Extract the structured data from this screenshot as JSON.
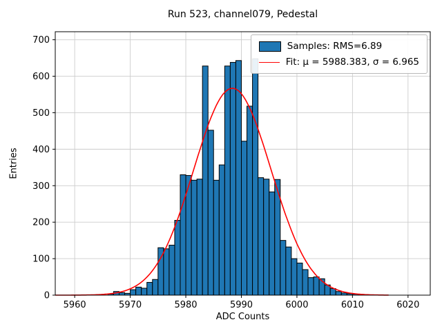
{
  "figure": {
    "title": "Run 523, channel079, Pedestal",
    "xlabel": "ADC Counts",
    "ylabel": "Entries"
  },
  "legend": {
    "samples_label": "Samples: RMS=6.89",
    "fit_label": "Fit: μ = 5988.383, σ = 6.965"
  },
  "chart_data": {
    "type": "bar",
    "subtype": "histogram-with-gaussian-fit",
    "title": "Run 523, channel079, Pedestal",
    "xlabel": "ADC Counts",
    "ylabel": "Entries",
    "grid": true,
    "legend_position": "upper right",
    "legend_entries": [
      "Samples: RMS=6.89",
      "Fit: μ = 5988.383, σ = 6.965"
    ],
    "colors": {
      "bar_fill": "#1f77b4",
      "bar_edge": "#000000",
      "fit_line": "#ff0000",
      "grid": "#cccccc",
      "frame": "#000000"
    },
    "axes": {
      "xmin": 5956.5,
      "xmax": 6024.0,
      "ymin": 0,
      "ymax": 722,
      "xticks": [
        5960,
        5970,
        5980,
        5990,
        6000,
        6010,
        6020
      ],
      "yticks": [
        0,
        100,
        200,
        300,
        400,
        500,
        600,
        700
      ]
    },
    "histogram": {
      "bin_width": 1,
      "bin_start": 5966,
      "counts": [
        3,
        10,
        7,
        5,
        15,
        22,
        19,
        35,
        43,
        130,
        127,
        137,
        205,
        330,
        328,
        315,
        318,
        628,
        452,
        315,
        357,
        628,
        638,
        643,
        422,
        518,
        648,
        322,
        318,
        283,
        317,
        150,
        132,
        100,
        88,
        70,
        48,
        50,
        45,
        28,
        18,
        10,
        6,
        4,
        3,
        2,
        1
      ]
    },
    "fit": {
      "mu": 5988.383,
      "sigma": 6.965,
      "amplitude": 567,
      "x_start": 5956.5,
      "x_end": 6016.5
    }
  }
}
